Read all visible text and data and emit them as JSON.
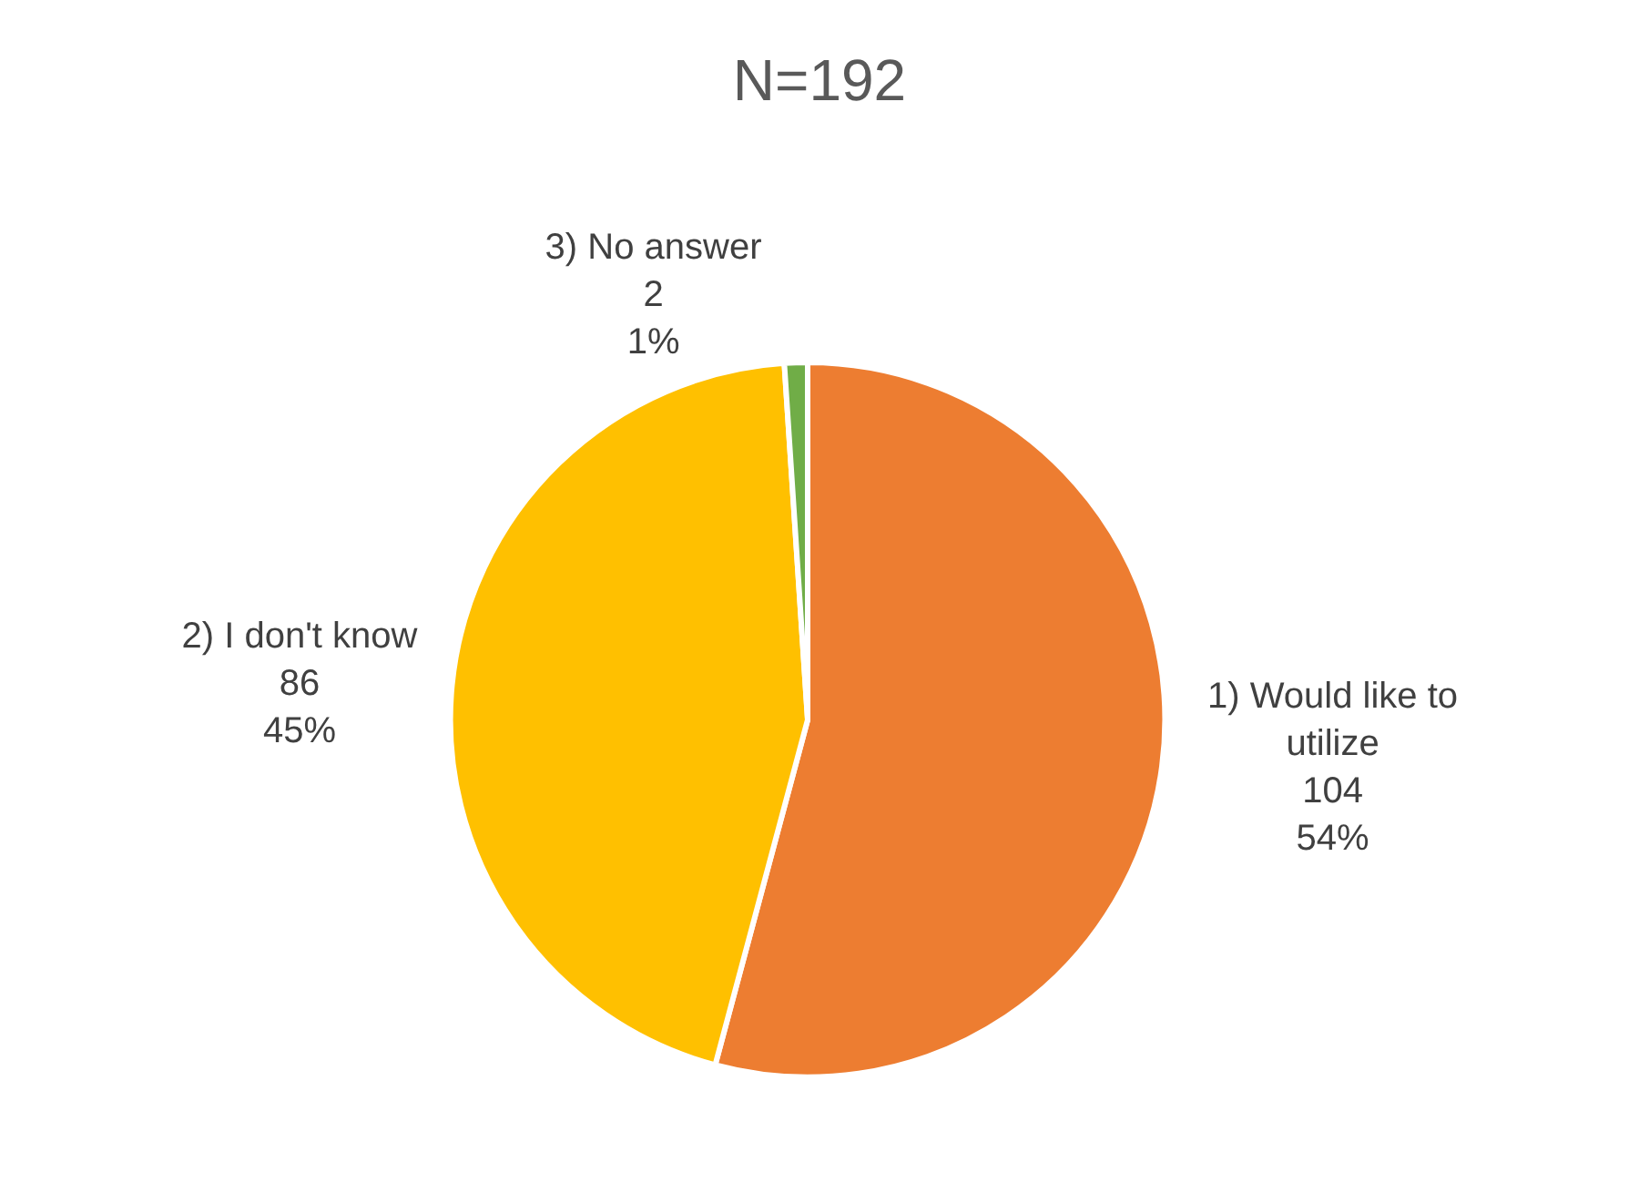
{
  "chart_data": {
    "type": "pie",
    "title": "N=192",
    "categories": [
      "1) Would like to utilize",
      "2) I don't know",
      "3) No answer"
    ],
    "values": [
      104,
      86,
      2
    ],
    "colors": [
      "#ed7d31",
      "#ffc000",
      "#70ad47"
    ],
    "value_labels": [
      "104\n54%",
      "86\n45%",
      "2\n1%"
    ],
    "legend": false
  }
}
